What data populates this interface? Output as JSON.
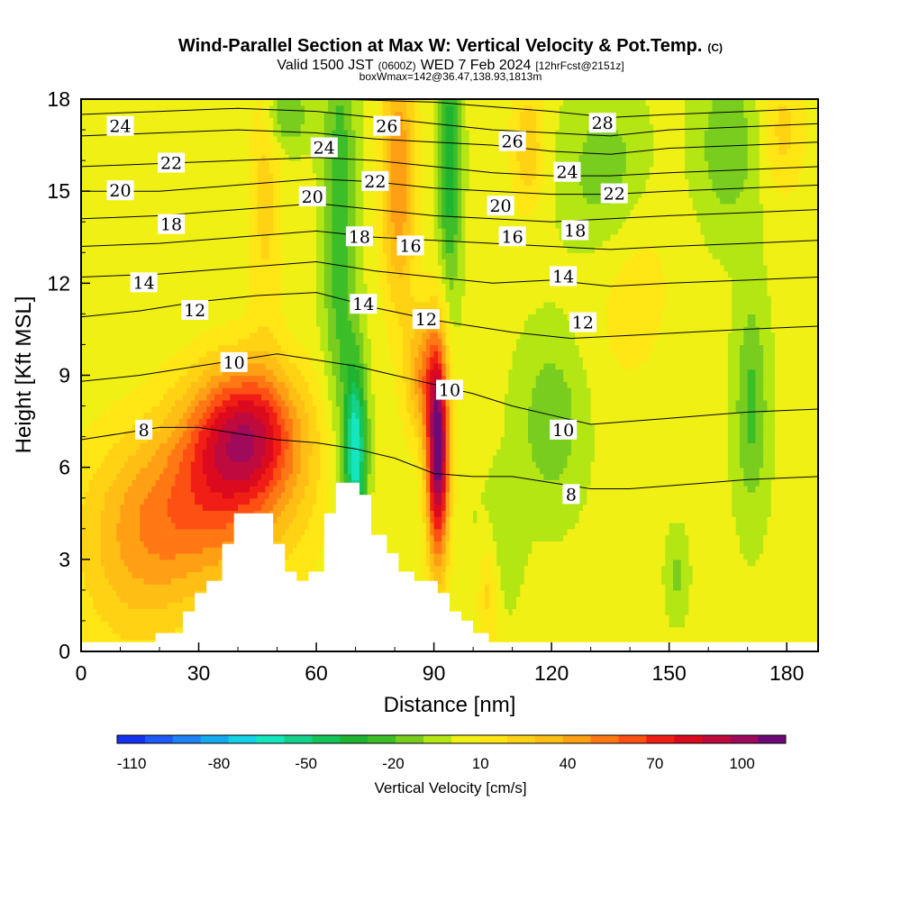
{
  "chart_data": {
    "type": "heatmap",
    "title": "Wind-Parallel Section at Max W: Vertical Velocity & Pot.Temp.",
    "title_mark": "(C)",
    "subtitle_valid": "Valid 1500 JST",
    "subtitle_z": "(0600Z)",
    "subtitle_date": "WED 7 Feb 2024",
    "subtitle_fcst": "[12hrFcst@2151z]",
    "subtitle_box": "boxWmax=142@36.47,138.93,1813m",
    "xlabel": "Distance [nm]",
    "ylabel": "Height [Kft MSL]",
    "xlim": [
      0,
      188
    ],
    "ylim": [
      0,
      18
    ],
    "x_ticks": [
      "0",
      "30",
      "60",
      "90",
      "120",
      "150",
      "180"
    ],
    "y_ticks": [
      "0",
      "3",
      "6",
      "9",
      "12",
      "15",
      "18"
    ],
    "colorbar": {
      "label": "Vertical Velocity [cm/s]",
      "tick_labels": [
        "-110",
        "-80",
        "-50",
        "-20",
        "10",
        "40",
        "70",
        "100"
      ],
      "range": [
        -115,
        115
      ],
      "colors": [
        "#1432f0",
        "#1e5af5",
        "#1e82f5",
        "#14aaf0",
        "#14d2e6",
        "#14e6be",
        "#14d28c",
        "#14c35a",
        "#1eb432",
        "#3cbe28",
        "#78cd1e",
        "#b4e614",
        "#f0f014",
        "#ffe614",
        "#ffd214",
        "#ffbe14",
        "#ffa014",
        "#ff7814",
        "#ff5014",
        "#f01e14",
        "#dc0a1e",
        "#be0a3c",
        "#a00a5a",
        "#6e0a78"
      ]
    },
    "topography_kft": [
      [
        0,
        0.3
      ],
      [
        19,
        0.3
      ],
      [
        19,
        0.6
      ],
      [
        26,
        0.6
      ],
      [
        26,
        1.3
      ],
      [
        29,
        1.3
      ],
      [
        29,
        1.9
      ],
      [
        32,
        1.9
      ],
      [
        32,
        2.3
      ],
      [
        36,
        2.3
      ],
      [
        36,
        3.5
      ],
      [
        39,
        3.5
      ],
      [
        39,
        4.5
      ],
      [
        49,
        4.5
      ],
      [
        49,
        3.5
      ],
      [
        52,
        3.5
      ],
      [
        52,
        2.6
      ],
      [
        55,
        2.6
      ],
      [
        55,
        2.3
      ],
      [
        58,
        2.3
      ],
      [
        58,
        2.6
      ],
      [
        62,
        2.6
      ],
      [
        62,
        4.5
      ],
      [
        65,
        4.5
      ],
      [
        65,
        5.5
      ],
      [
        71,
        5.5
      ],
      [
        71,
        5.1
      ],
      [
        74,
        5.1
      ],
      [
        74,
        3.8
      ],
      [
        78,
        3.8
      ],
      [
        78,
        3.2
      ],
      [
        81,
        3.2
      ],
      [
        81,
        2.6
      ],
      [
        85,
        2.6
      ],
      [
        85,
        2.3
      ],
      [
        91,
        2.3
      ],
      [
        91,
        1.9
      ],
      [
        94,
        1.9
      ],
      [
        94,
        1.3
      ],
      [
        97,
        1.3
      ],
      [
        97,
        1.0
      ],
      [
        100,
        1.0
      ],
      [
        100,
        0.6
      ],
      [
        104,
        0.6
      ],
      [
        104,
        0.3
      ],
      [
        188,
        0.3
      ]
    ],
    "w_cells": [
      {
        "x": 42,
        "y": 7.2,
        "w": 75,
        "sx": 10,
        "sy": 1.6
      },
      {
        "x": 33,
        "y": 4.8,
        "w": 45,
        "sx": 16,
        "sy": 2.0
      },
      {
        "x": 47,
        "y": 15.0,
        "w": 20,
        "sx": 3,
        "sy": 3.5
      },
      {
        "x": 91,
        "y": 6.5,
        "w": 110,
        "sx": 2,
        "sy": 2.5
      },
      {
        "x": 81,
        "y": 15.5,
        "w": 45,
        "sx": 3,
        "sy": 3.0
      },
      {
        "x": 87,
        "y": 9.0,
        "w": 40,
        "sx": 3,
        "sy": 1.5
      },
      {
        "x": 14,
        "y": 3.0,
        "w": 25,
        "sx": 12,
        "sy": 2.5
      },
      {
        "x": 70,
        "y": 6.5,
        "w": -70,
        "sx": 2,
        "sy": 2.0
      },
      {
        "x": 66,
        "y": 14.0,
        "w": -30,
        "sx": 3,
        "sy": 5.0
      },
      {
        "x": 94,
        "y": 16.0,
        "w": -40,
        "sx": 2,
        "sy": 3.0
      },
      {
        "x": 52,
        "y": 17.5,
        "w": -25,
        "sx": 4,
        "sy": 0.8
      },
      {
        "x": 120,
        "y": 7.5,
        "w": -20,
        "sx": 6,
        "sy": 2.0
      },
      {
        "x": 135,
        "y": 15.5,
        "w": -25,
        "sx": 8,
        "sy": 2.0
      },
      {
        "x": 171,
        "y": 8.0,
        "w": -25,
        "sx": 3,
        "sy": 2.5
      },
      {
        "x": 165,
        "y": 16.5,
        "w": -20,
        "sx": 6,
        "sy": 2.0
      },
      {
        "x": 106,
        "y": 3.5,
        "w": -15,
        "sx": 4,
        "sy": 1.5
      },
      {
        "x": 152,
        "y": 2.5,
        "w": -15,
        "sx": 2,
        "sy": 1.0
      },
      {
        "x": 114,
        "y": 16.5,
        "w": 25,
        "sx": 3,
        "sy": 1.5
      },
      {
        "x": 104,
        "y": 2.2,
        "w": 25,
        "sx": 2,
        "sy": 1.5
      },
      {
        "x": 140,
        "y": 13.0,
        "w": 15,
        "sx": 8,
        "sy": 3.0
      },
      {
        "x": 179,
        "y": 17.0,
        "w": 20,
        "sx": 4,
        "sy": 1.5
      }
    ],
    "isentropes": [
      {
        "label": "8",
        "pts": [
          [
            0,
            6.9
          ],
          [
            10,
            7.1
          ],
          [
            20,
            7.3
          ],
          [
            30,
            7.3
          ],
          [
            40,
            7.1
          ],
          [
            50,
            6.9
          ],
          [
            60,
            6.8
          ],
          [
            70,
            6.6
          ],
          [
            80,
            6.3
          ],
          [
            90,
            5.8
          ],
          [
            100,
            5.7
          ],
          [
            110,
            5.7
          ],
          [
            120,
            5.5
          ],
          [
            130,
            5.3
          ],
          [
            140,
            5.3
          ],
          [
            150,
            5.4
          ],
          [
            160,
            5.5
          ],
          [
            170,
            5.6
          ],
          [
            188,
            5.7
          ]
        ],
        "labels_at": [
          {
            "x": 16,
            "y": 7.2,
            "text": "8"
          },
          {
            "x": 125,
            "y": 5.1,
            "text": "8"
          }
        ]
      },
      {
        "label": "10",
        "pts": [
          [
            0,
            8.8
          ],
          [
            15,
            9.0
          ],
          [
            30,
            9.3
          ],
          [
            40,
            9.5
          ],
          [
            50,
            9.7
          ],
          [
            60,
            9.5
          ],
          [
            70,
            9.3
          ],
          [
            80,
            9.0
          ],
          [
            90,
            8.7
          ],
          [
            100,
            8.4
          ],
          [
            110,
            8.0
          ],
          [
            120,
            7.7
          ],
          [
            130,
            7.4
          ],
          [
            140,
            7.5
          ],
          [
            150,
            7.6
          ],
          [
            160,
            7.7
          ],
          [
            170,
            7.8
          ],
          [
            188,
            7.9
          ]
        ],
        "labels_at": [
          {
            "x": 39,
            "y": 9.4,
            "text": "10"
          },
          {
            "x": 94,
            "y": 8.5,
            "text": "10"
          },
          {
            "x": 123,
            "y": 7.2,
            "text": "10"
          }
        ]
      },
      {
        "label": "12",
        "pts": [
          [
            0,
            10.9
          ],
          [
            15,
            11.1
          ],
          [
            30,
            11.4
          ],
          [
            45,
            11.6
          ],
          [
            60,
            11.7
          ],
          [
            75,
            11.2
          ],
          [
            90,
            10.8
          ],
          [
            100,
            10.6
          ],
          [
            110,
            10.4
          ],
          [
            125,
            10.2
          ],
          [
            140,
            10.3
          ],
          [
            155,
            10.4
          ],
          [
            170,
            10.5
          ],
          [
            188,
            10.6
          ]
        ],
        "labels_at": [
          {
            "x": 29,
            "y": 11.1,
            "text": "12"
          },
          {
            "x": 88,
            "y": 10.8,
            "text": "12"
          },
          {
            "x": 128,
            "y": 10.7,
            "text": "12"
          }
        ]
      },
      {
        "label": "14",
        "pts": [
          [
            0,
            12.2
          ],
          [
            20,
            12.3
          ],
          [
            40,
            12.5
          ],
          [
            60,
            12.7
          ],
          [
            75,
            12.4
          ],
          [
            90,
            12.2
          ],
          [
            105,
            12.0
          ],
          [
            120,
            12.1
          ],
          [
            135,
            11.9
          ],
          [
            150,
            12.0
          ],
          [
            170,
            12.1
          ],
          [
            188,
            12.2
          ]
        ],
        "labels_at": [
          {
            "x": 16,
            "y": 12.0,
            "text": "14"
          },
          {
            "x": 72,
            "y": 11.3,
            "text": "14"
          },
          {
            "x": 123,
            "y": 12.2,
            "text": "14"
          }
        ]
      },
      {
        "label": "16",
        "pts": [
          [
            0,
            13.2
          ],
          [
            20,
            13.3
          ],
          [
            40,
            13.5
          ],
          [
            60,
            13.7
          ],
          [
            75,
            13.5
          ],
          [
            90,
            13.4
          ],
          [
            105,
            13.3
          ],
          [
            120,
            13.2
          ],
          [
            135,
            13.1
          ],
          [
            150,
            13.2
          ],
          [
            170,
            13.3
          ],
          [
            188,
            13.4
          ]
        ],
        "labels_at": [
          {
            "x": 84,
            "y": 13.2,
            "text": "16"
          },
          {
            "x": 110,
            "y": 13.5,
            "text": "16"
          }
        ]
      },
      {
        "label": "18",
        "pts": [
          [
            0,
            14.1
          ],
          [
            20,
            14.2
          ],
          [
            40,
            14.4
          ],
          [
            60,
            14.6
          ],
          [
            75,
            14.4
          ],
          [
            90,
            14.2
          ],
          [
            105,
            14.1
          ],
          [
            120,
            14.0
          ],
          [
            135,
            14.1
          ],
          [
            150,
            14.2
          ],
          [
            170,
            14.3
          ],
          [
            188,
            14.4
          ]
        ],
        "labels_at": [
          {
            "x": 23,
            "y": 13.9,
            "text": "18"
          },
          {
            "x": 71,
            "y": 13.5,
            "text": "18"
          },
          {
            "x": 126,
            "y": 13.7,
            "text": "18"
          }
        ]
      },
      {
        "label": "20",
        "pts": [
          [
            0,
            15.0
          ],
          [
            20,
            15.0
          ],
          [
            40,
            15.2
          ],
          [
            60,
            15.4
          ],
          [
            75,
            15.3
          ],
          [
            90,
            15.1
          ],
          [
            105,
            15.0
          ],
          [
            120,
            14.9
          ],
          [
            135,
            14.9
          ],
          [
            150,
            15.0
          ],
          [
            170,
            15.1
          ],
          [
            188,
            15.2
          ]
        ],
        "labels_at": [
          {
            "x": 10,
            "y": 15.0,
            "text": "20"
          },
          {
            "x": 59,
            "y": 14.8,
            "text": "20"
          },
          {
            "x": 107,
            "y": 14.5,
            "text": "20"
          }
        ]
      },
      {
        "label": "22",
        "pts": [
          [
            0,
            15.8
          ],
          [
            20,
            15.9
          ],
          [
            40,
            16.0
          ],
          [
            60,
            16.1
          ],
          [
            75,
            16.0
          ],
          [
            90,
            15.8
          ],
          [
            105,
            15.6
          ],
          [
            120,
            15.5
          ],
          [
            135,
            15.5
          ],
          [
            150,
            15.6
          ],
          [
            170,
            15.7
          ],
          [
            188,
            15.8
          ]
        ],
        "labels_at": [
          {
            "x": 23,
            "y": 15.9,
            "text": "22"
          },
          {
            "x": 75,
            "y": 15.3,
            "text": "22"
          },
          {
            "x": 136,
            "y": 14.9,
            "text": "22"
          }
        ]
      },
      {
        "label": "24",
        "pts": [
          [
            0,
            16.8
          ],
          [
            20,
            16.9
          ],
          [
            40,
            17.0
          ],
          [
            60,
            16.9
          ],
          [
            75,
            16.7
          ],
          [
            90,
            16.6
          ],
          [
            105,
            16.5
          ],
          [
            120,
            16.3
          ],
          [
            135,
            16.2
          ],
          [
            150,
            16.4
          ],
          [
            170,
            16.5
          ],
          [
            188,
            16.6
          ]
        ],
        "labels_at": [
          {
            "x": 10,
            "y": 17.1,
            "text": "24"
          },
          {
            "x": 62,
            "y": 16.4,
            "text": "24"
          },
          {
            "x": 124,
            "y": 15.6,
            "text": "24"
          }
        ]
      },
      {
        "label": "26",
        "pts": [
          [
            0,
            17.5
          ],
          [
            20,
            17.6
          ],
          [
            40,
            17.7
          ],
          [
            60,
            17.6
          ],
          [
            75,
            17.4
          ],
          [
            90,
            17.2
          ],
          [
            105,
            17.0
          ],
          [
            120,
            16.9
          ],
          [
            135,
            16.8
          ],
          [
            150,
            17.0
          ],
          [
            170,
            17.1
          ],
          [
            188,
            17.2
          ]
        ],
        "labels_at": [
          {
            "x": 78,
            "y": 17.1,
            "text": "26"
          },
          {
            "x": 110,
            "y": 16.6,
            "text": "26"
          }
        ]
      },
      {
        "label": "28",
        "pts": [
          [
            0,
            18.0
          ],
          [
            40,
            18.1
          ],
          [
            90,
            17.9
          ],
          [
            120,
            17.6
          ],
          [
            135,
            17.4
          ],
          [
            150,
            17.5
          ],
          [
            170,
            17.6
          ],
          [
            188,
            17.7
          ]
        ],
        "labels_at": [
          {
            "x": 133,
            "y": 17.2,
            "text": "28"
          }
        ]
      }
    ],
    "grid": false,
    "legend": "bottom"
  }
}
